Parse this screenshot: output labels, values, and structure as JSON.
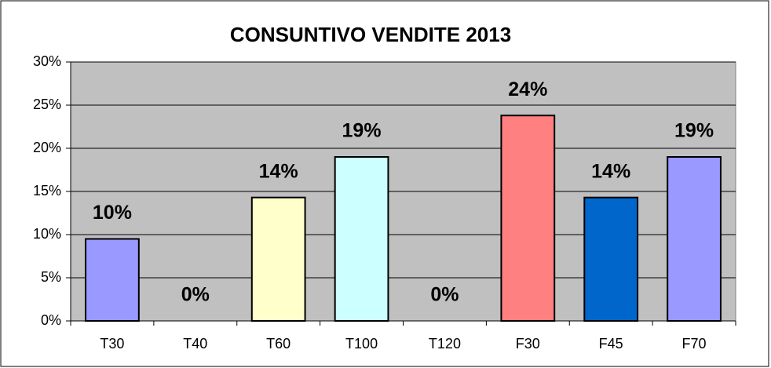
{
  "chart_data": {
    "type": "bar",
    "title": "CONSUNTIVO VENDITE 2013",
    "categories": [
      "T30",
      "T40",
      "T60",
      "T100",
      "T120",
      "F30",
      "F45",
      "F70"
    ],
    "values": [
      9.5,
      0,
      14.3,
      19,
      0,
      23.8,
      14.3,
      19
    ],
    "value_labels": [
      "10%",
      "0%",
      "14%",
      "19%",
      "0%",
      "24%",
      "14%",
      "19%"
    ],
    "colors": [
      "#9999ff",
      "#9999ff",
      "#ffffcc",
      "#ccffff",
      "#ccffff",
      "#ff8080",
      "#0066cc",
      "#9999ff"
    ],
    "ylim": [
      0,
      30
    ],
    "yticks": [
      {
        "value": 0,
        "label": "0%"
      },
      {
        "value": 5,
        "label": "5%"
      },
      {
        "value": 10,
        "label": "10%"
      },
      {
        "value": 15,
        "label": "15%"
      },
      {
        "value": 20,
        "label": "20%"
      },
      {
        "value": 25,
        "label": "25%"
      },
      {
        "value": 30,
        "label": "30%"
      }
    ],
    "grid": true
  }
}
